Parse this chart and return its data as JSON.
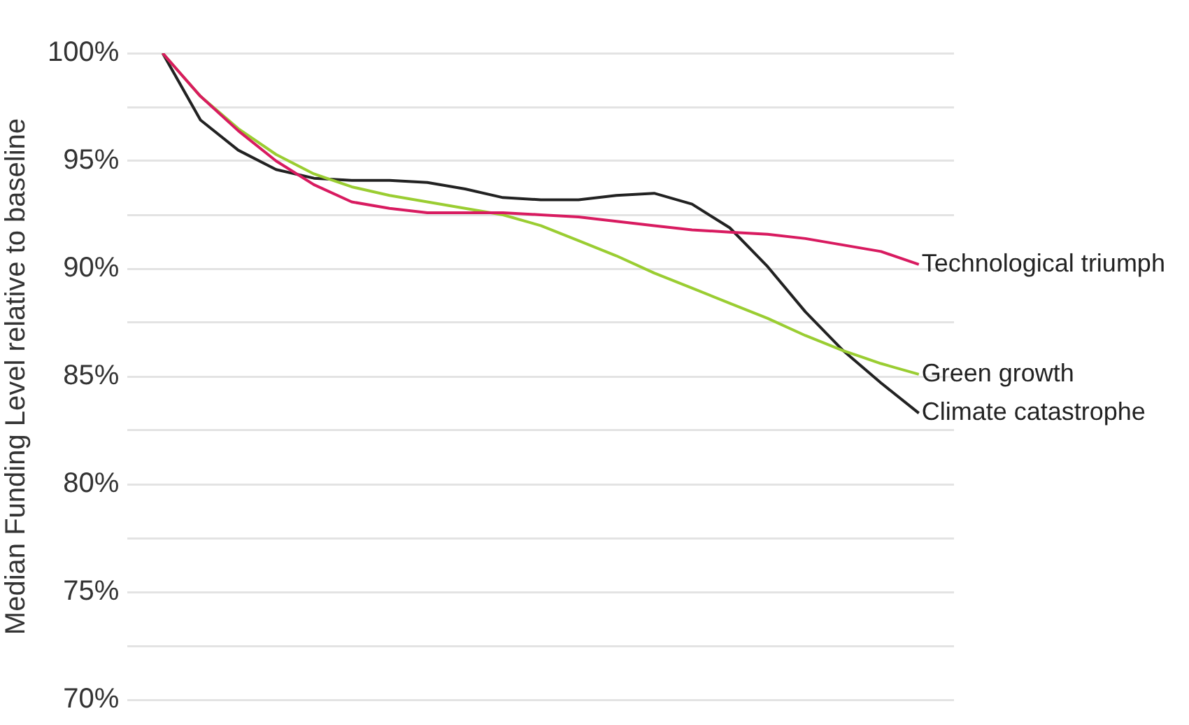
{
  "chart_data": {
    "type": "line",
    "ylabel": "Median Funding Level relative to baseline",
    "categories": [
      null,
      null,
      null,
      null,
      null,
      null,
      null,
      null,
      null,
      null,
      null,
      null,
      null,
      null,
      null,
      null,
      null,
      null,
      null,
      null,
      null
    ],
    "series": [
      {
        "name": "Technological triumph",
        "color": "#d81b60",
        "values": [
          100,
          98.0,
          96.4,
          95.0,
          93.9,
          93.1,
          92.8,
          92.6,
          92.6,
          92.6,
          92.5,
          92.4,
          92.2,
          92.0,
          91.8,
          91.7,
          91.6,
          91.4,
          91.1,
          90.8,
          90.2
        ]
      },
      {
        "name": "Green growth",
        "color": "#9acd32",
        "values": [
          100,
          98.0,
          96.5,
          95.3,
          94.4,
          93.8,
          93.4,
          93.1,
          92.8,
          92.5,
          92.0,
          91.3,
          90.6,
          89.8,
          89.1,
          88.4,
          87.7,
          86.9,
          86.2,
          85.6,
          85.1
        ]
      },
      {
        "name": "Climate catastrophe",
        "color": "#222222",
        "values": [
          100,
          96.9,
          95.5,
          94.6,
          94.2,
          94.1,
          94.1,
          94.0,
          93.7,
          93.3,
          93.2,
          93.2,
          93.4,
          93.5,
          93.0,
          91.9,
          90.1,
          88.0,
          86.2,
          84.7,
          83.3
        ]
      }
    ],
    "ylim": [
      70,
      100
    ],
    "yticks": [
      {
        "value": 70,
        "label": "70%"
      },
      {
        "value": 72.5,
        "label": null
      },
      {
        "value": 75,
        "label": "75%"
      },
      {
        "value": 77.5,
        "label": null
      },
      {
        "value": 80,
        "label": "80%"
      },
      {
        "value": 82.5,
        "label": null
      },
      {
        "value": 85,
        "label": "85%"
      },
      {
        "value": 87.5,
        "label": null
      },
      {
        "value": 90,
        "label": "90%"
      },
      {
        "value": 92.5,
        "label": null
      },
      {
        "value": 95,
        "label": "95%"
      },
      {
        "value": 97.5,
        "label": null
      },
      {
        "value": 100,
        "label": "100%"
      }
    ],
    "grid": "y",
    "legend": false,
    "marker": "none",
    "line_style": "solid",
    "tick_labels": "y"
  }
}
